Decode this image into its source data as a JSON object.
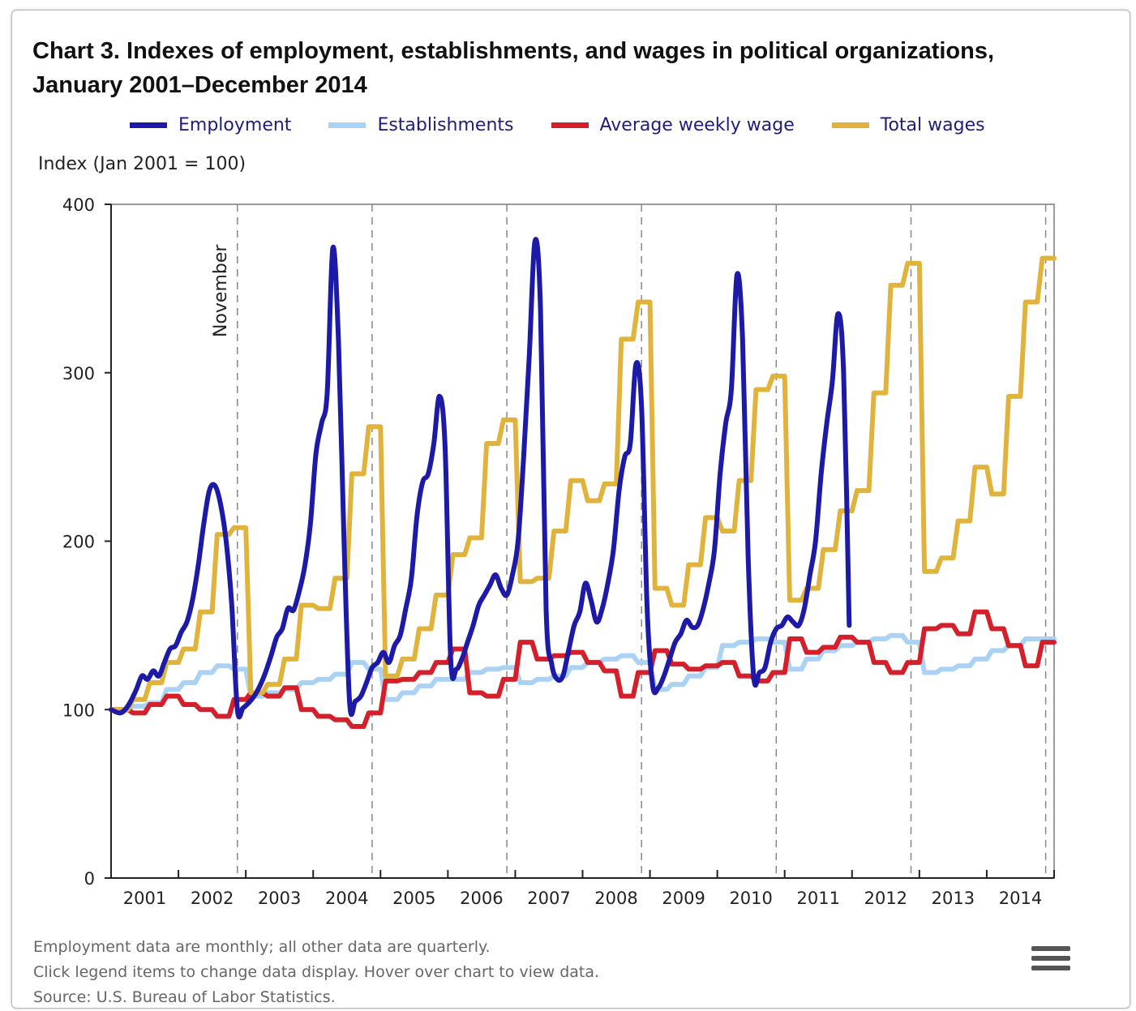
{
  "title": "Chart 3. Indexes of employment, establishments, and wages in political organizations, January 2001–December 2014",
  "legend": [
    {
      "name": "Employment",
      "color": "#1c1aa6"
    },
    {
      "name": "Establishments",
      "color": "#a9d2f5"
    },
    {
      "name": "Average weekly wage",
      "color": "#d3202a"
    },
    {
      "name": "Total wages",
      "color": "#e0b43c"
    }
  ],
  "notes": [
    "Employment data are monthly; all other data are quarterly.",
    "Click legend items to change data display. Hover over chart to view data.",
    "Source: U.S. Bureau of Labor Statistics."
  ],
  "menu_icon": "hamburger-menu-icon",
  "chart_data": {
    "type": "line",
    "ylabel": "Index (Jan 2001 = 100)",
    "ylim": [
      0,
      400
    ],
    "yticks": [
      0,
      100,
      200,
      300,
      400
    ],
    "years": [
      "2001",
      "2002",
      "2003",
      "2004",
      "2005",
      "2006",
      "2007",
      "2008",
      "2009",
      "2010",
      "2011",
      "2012",
      "2013",
      "2014"
    ],
    "x_start": "January 2001",
    "x_end": "December 2014",
    "grid": false,
    "legend_position": "top",
    "annotation": {
      "text": "November",
      "note": "dashed vertical lines mark November of election years",
      "marker_years": [
        "2002",
        "2004",
        "2006",
        "2008",
        "2010",
        "2012",
        "2014"
      ]
    },
    "quarters": [
      "2001Q1",
      "2001Q2",
      "2001Q3",
      "2001Q4",
      "2002Q1",
      "2002Q2",
      "2002Q3",
      "2002Q4",
      "2003Q1",
      "2003Q2",
      "2003Q3",
      "2003Q4",
      "2004Q1",
      "2004Q2",
      "2004Q3",
      "2004Q4",
      "2005Q1",
      "2005Q2",
      "2005Q3",
      "2005Q4",
      "2006Q1",
      "2006Q2",
      "2006Q3",
      "2006Q4",
      "2007Q1",
      "2007Q2",
      "2007Q3",
      "2007Q4",
      "2008Q1",
      "2008Q2",
      "2008Q3",
      "2008Q4",
      "2009Q1",
      "2009Q2",
      "2009Q3",
      "2009Q4",
      "2010Q1",
      "2010Q2",
      "2010Q3",
      "2010Q4",
      "2011Q1",
      "2011Q2",
      "2011Q3",
      "2011Q4",
      "2012Q1",
      "2012Q2",
      "2012Q3",
      "2012Q4",
      "2013Q1",
      "2013Q2",
      "2013Q3",
      "2013Q4",
      "2014Q1",
      "2014Q2",
      "2014Q3",
      "2014Q4"
    ],
    "series": [
      {
        "name": "Employment",
        "frequency": "monthly",
        "color": "#1c1aa6",
        "values": [
          100,
          98,
          100,
          105,
          112,
          120,
          118,
          123,
          120,
          128,
          136,
          138,
          146,
          152,
          165,
          185,
          210,
          230,
          233,
          222,
          200,
          162,
          100,
          101,
          104,
          108,
          114,
          122,
          132,
          143,
          148,
          160,
          159,
          170,
          185,
          210,
          252,
          270,
          288,
          374,
          320,
          200,
          104,
          105,
          108,
          116,
          125,
          128,
          134,
          128,
          138,
          144,
          160,
          178,
          215,
          235,
          240,
          258,
          286,
          256,
          130,
          124,
          130,
          140,
          150,
          162,
          168,
          174,
          180,
          172,
          168,
          180,
          200,
          250,
          310,
          378,
          338,
          160,
          127,
          118,
          120,
          135,
          150,
          158,
          175,
          165,
          152,
          160,
          175,
          195,
          230,
          250,
          258,
          305,
          280,
          160,
          114,
          113,
          120,
          130,
          140,
          145,
          153,
          149,
          150,
          160,
          175,
          195,
          240,
          270,
          290,
          358,
          320,
          190,
          119,
          122,
          125,
          140,
          148,
          150,
          155,
          152,
          150,
          160,
          180,
          200,
          240,
          270,
          295,
          335,
          300,
          150
        ]
      },
      {
        "name": "Establishments",
        "frequency": "quarterly",
        "color": "#a9d2f5",
        "values": [
          100,
          102,
          104,
          112,
          116,
          122,
          126,
          124,
          108,
          110,
          112,
          116,
          118,
          121,
          128,
          124,
          106,
          110,
          114,
          118,
          118,
          122,
          124,
          125,
          116,
          118,
          120,
          125,
          128,
          130,
          132,
          128,
          112,
          115,
          120,
          125,
          138,
          140,
          142,
          140,
          124,
          130,
          135,
          138,
          140,
          142,
          144,
          140,
          122,
          124,
          126,
          130,
          135,
          138,
          142,
          142
        ]
      },
      {
        "name": "Average weekly wage",
        "frequency": "quarterly",
        "color": "#d3202a",
        "values": [
          100,
          98,
          103,
          108,
          103,
          100,
          96,
          106,
          110,
          108,
          113,
          100,
          96,
          94,
          90,
          98,
          117,
          118,
          122,
          128,
          136,
          110,
          108,
          118,
          140,
          130,
          132,
          134,
          128,
          123,
          108,
          122,
          135,
          127,
          124,
          126,
          128,
          120,
          117,
          122,
          142,
          134,
          137,
          143,
          140,
          128,
          122,
          128,
          148,
          150,
          145,
          158,
          148,
          138,
          126,
          140
        ]
      },
      {
        "name": "Total wages",
        "frequency": "quarterly",
        "color": "#e0b43c",
        "values": [
          100,
          106,
          116,
          128,
          136,
          158,
          204,
          208,
          110,
          115,
          130,
          162,
          160,
          178,
          240,
          268,
          120,
          130,
          148,
          168,
          192,
          202,
          258,
          272,
          176,
          178,
          206,
          236,
          224,
          234,
          320,
          342,
          172,
          162,
          186,
          214,
          206,
          236,
          290,
          298,
          165,
          172,
          195,
          218,
          230,
          288,
          352,
          365,
          182,
          190,
          212,
          244,
          228,
          286,
          342,
          368
        ]
      }
    ]
  }
}
